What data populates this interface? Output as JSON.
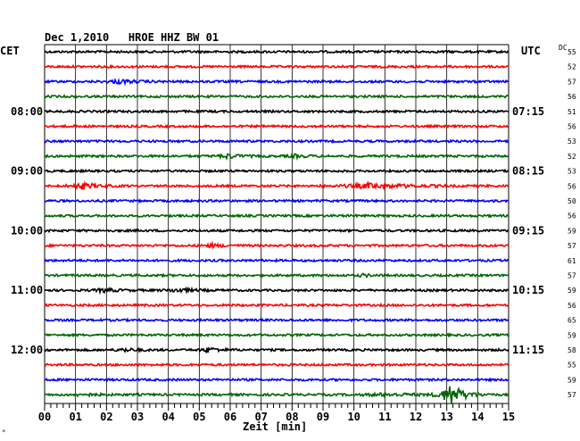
{
  "chart_data": {
    "type": "line",
    "title": "Dec 1,2010   HROE HHZ BW 01",
    "left_label": "CET",
    "right_label": "UTC",
    "dc_header": "DC",
    "xlabel": "Zeit [min]",
    "xlim": [
      0,
      15
    ],
    "x_ticks": [
      "00",
      "01",
      "02",
      "03",
      "04",
      "05",
      "06",
      "07",
      "08",
      "09",
      "10",
      "11",
      "12",
      "13",
      "14",
      "15"
    ],
    "row_colors": [
      "#000000",
      "#ff0000",
      "#0000ff",
      "#006600"
    ],
    "rows": 24,
    "cet_labels": [
      {
        "row": 4,
        "text": "08:00"
      },
      {
        "row": 8,
        "text": "09:00"
      },
      {
        "row": 12,
        "text": "10:00"
      },
      {
        "row": 16,
        "text": "11:00"
      },
      {
        "row": 20,
        "text": "12:00"
      }
    ],
    "utc_labels": [
      {
        "row": 4,
        "text": "07:15"
      },
      {
        "row": 8,
        "text": "08:15"
      },
      {
        "row": 12,
        "text": "09:15"
      },
      {
        "row": 16,
        "text": "10:15"
      },
      {
        "row": 20,
        "text": "11:15"
      }
    ],
    "dc_values": [
      "55",
      "52",
      "57",
      "56",
      "51",
      "56",
      "53",
      "52",
      "53",
      "56",
      "50",
      "56",
      "59",
      "57",
      "61",
      "57",
      "59",
      "56",
      "65",
      "59",
      "58",
      "55",
      "59",
      "57"
    ],
    "events": [
      {
        "row": 2,
        "minute": 2.4,
        "amp": 2.0,
        "width": 0.6
      },
      {
        "row": 7,
        "minute": 5.9,
        "amp": 2.2,
        "width": 0.5
      },
      {
        "row": 7,
        "minute": 8.1,
        "amp": 1.5,
        "width": 0.4
      },
      {
        "row": 9,
        "minute": 1.2,
        "amp": 3.0,
        "width": 0.6
      },
      {
        "row": 9,
        "minute": 10.5,
        "amp": 2.6,
        "width": 1.5
      },
      {
        "row": 13,
        "minute": 5.4,
        "amp": 1.5,
        "width": 0.5
      },
      {
        "row": 15,
        "minute": 10.3,
        "amp": 1.2,
        "width": 0.3
      },
      {
        "row": 16,
        "minute": 1.9,
        "amp": 1.8,
        "width": 0.5
      },
      {
        "row": 16,
        "minute": 4.3,
        "amp": 1.8,
        "width": 0.6
      },
      {
        "row": 20,
        "minute": 2.6,
        "amp": 1.5,
        "width": 0.5
      },
      {
        "row": 20,
        "minute": 5.3,
        "amp": 2.6,
        "width": 0.4
      },
      {
        "row": 23,
        "minute": 1.2,
        "amp": 1.3,
        "width": 0.5
      },
      {
        "row": 23,
        "minute": 11.0,
        "amp": 1.4,
        "width": 1.2
      },
      {
        "row": 23,
        "minute": 13.1,
        "amp": 12,
        "width": 0.5
      }
    ]
  }
}
